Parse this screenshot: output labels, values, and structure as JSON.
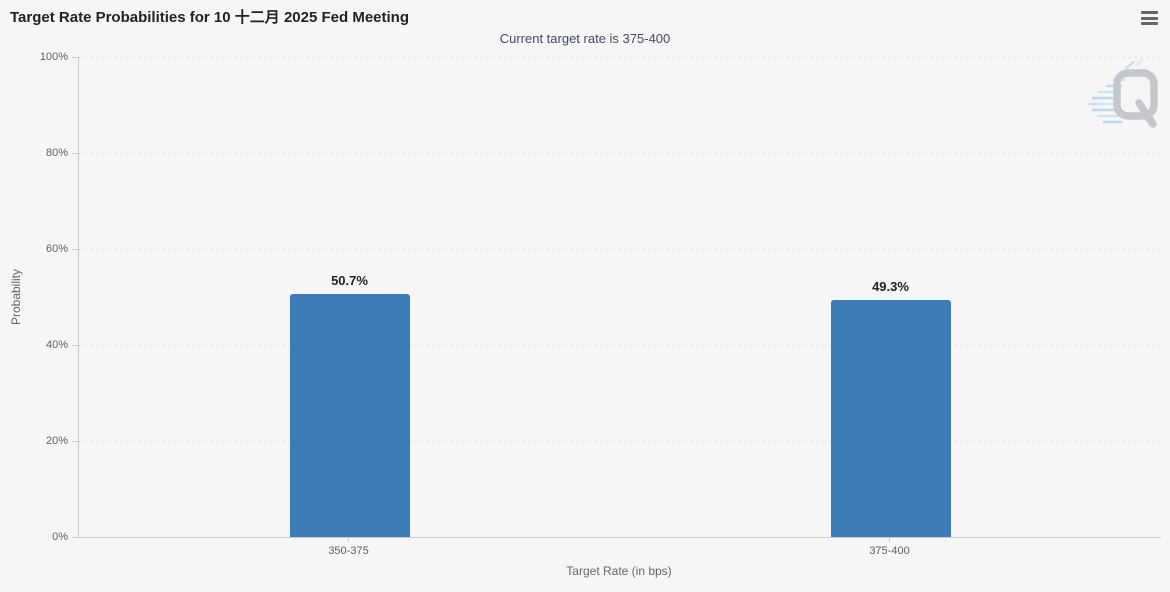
{
  "chart_data": {
    "type": "bar",
    "title": "Target Rate Probabilities for 10 十二月 2025 Fed Meeting",
    "subtitle": "Current target rate is 375-400",
    "categories": [
      "350-375",
      "375-400"
    ],
    "values": [
      50.7,
      49.3
    ],
    "value_labels": [
      "50.7%",
      "49.3%"
    ],
    "xlabel": "Target Rate (in bps)",
    "ylabel": "Probability",
    "ylim": [
      0,
      100
    ],
    "yticks": [
      "0%",
      "20%",
      "40%",
      "60%",
      "80%",
      "100%"
    ],
    "bar_color": "#3d7cb8",
    "grid": "dotted horizontal gridlines",
    "legend_position": "none",
    "background_color": "#f6f6f6"
  },
  "icons": {
    "menu": "hamburger-icon",
    "watermark": "q-logo-icon"
  }
}
